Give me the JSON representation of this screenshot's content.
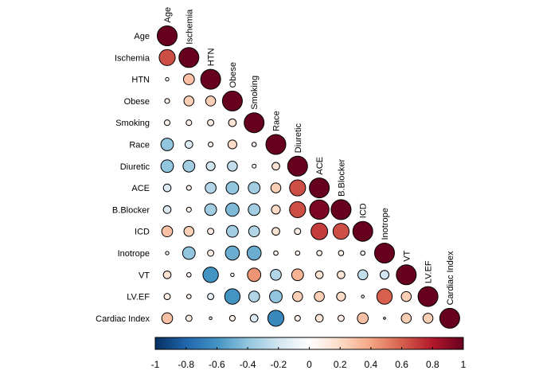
{
  "chart_data": {
    "type": "heatmap",
    "subtype": "lower-triangular correlation matrix (circle glyphs)",
    "variables": [
      "Age",
      "Ischemia",
      "HTN",
      "Obese",
      "Smoking",
      "Race",
      "Diuretic",
      "ACE",
      "B.Blocker",
      "ICD",
      "Inotrope",
      "VT",
      "LV.EF",
      "Cardiac Index"
    ],
    "matrix": [
      [
        1.0
      ],
      [
        0.65,
        1.0
      ],
      [
        0.03,
        0.3,
        1.0
      ],
      [
        0.06,
        0.25,
        0.25,
        1.0
      ],
      [
        0.08,
        0.08,
        0.1,
        0.15,
        1.0
      ],
      [
        -0.4,
        -0.15,
        0.06,
        0.2,
        0.05,
        1.0
      ],
      [
        -0.4,
        -0.35,
        -0.2,
        -0.25,
        0.04,
        0.15,
        1.0
      ],
      [
        -0.15,
        0.06,
        -0.3,
        -0.4,
        -0.35,
        0.25,
        0.65,
        1.0
      ],
      [
        -0.15,
        0.06,
        -0.35,
        -0.45,
        -0.35,
        0.2,
        0.65,
        0.95,
        1.0
      ],
      [
        0.3,
        0.25,
        0.1,
        -0.35,
        -0.3,
        0.15,
        0.1,
        0.7,
        0.65,
        1.0
      ],
      [
        -0.03,
        -0.4,
        0.1,
        -0.5,
        -0.5,
        0.05,
        0.05,
        0.07,
        0.07,
        0.05,
        1.0
      ],
      [
        0.15,
        0.05,
        -0.6,
        0.03,
        0.45,
        -0.3,
        0.35,
        0.15,
        0.15,
        -0.25,
        -0.2,
        1.0
      ],
      [
        0.1,
        0.05,
        -0.1,
        -0.6,
        -0.3,
        -0.4,
        0.25,
        0.25,
        0.2,
        0.02,
        0.6,
        0.25,
        1.0
      ],
      [
        0.3,
        0.1,
        0.02,
        0.08,
        -0.15,
        -0.65,
        0.08,
        0.15,
        0.1,
        0.3,
        0.01,
        0.25,
        0.25,
        1.0
      ]
    ],
    "color_scale": {
      "range": [
        -1,
        1
      ],
      "stops": [
        "#053061",
        "#2166AC",
        "#4393C3",
        "#92C5DE",
        "#D1E5F0",
        "#FFFFFF",
        "#FDDBC7",
        "#F4A582",
        "#D6604D",
        "#B2182B",
        "#67001F"
      ],
      "ticks": [
        "-1",
        "-0.8",
        "-0.6",
        "-0.4",
        "-0.2",
        "0",
        "0.2",
        "0.4",
        "0.6",
        "0.8",
        "1"
      ]
    },
    "legend": "bottom",
    "grid": false
  }
}
